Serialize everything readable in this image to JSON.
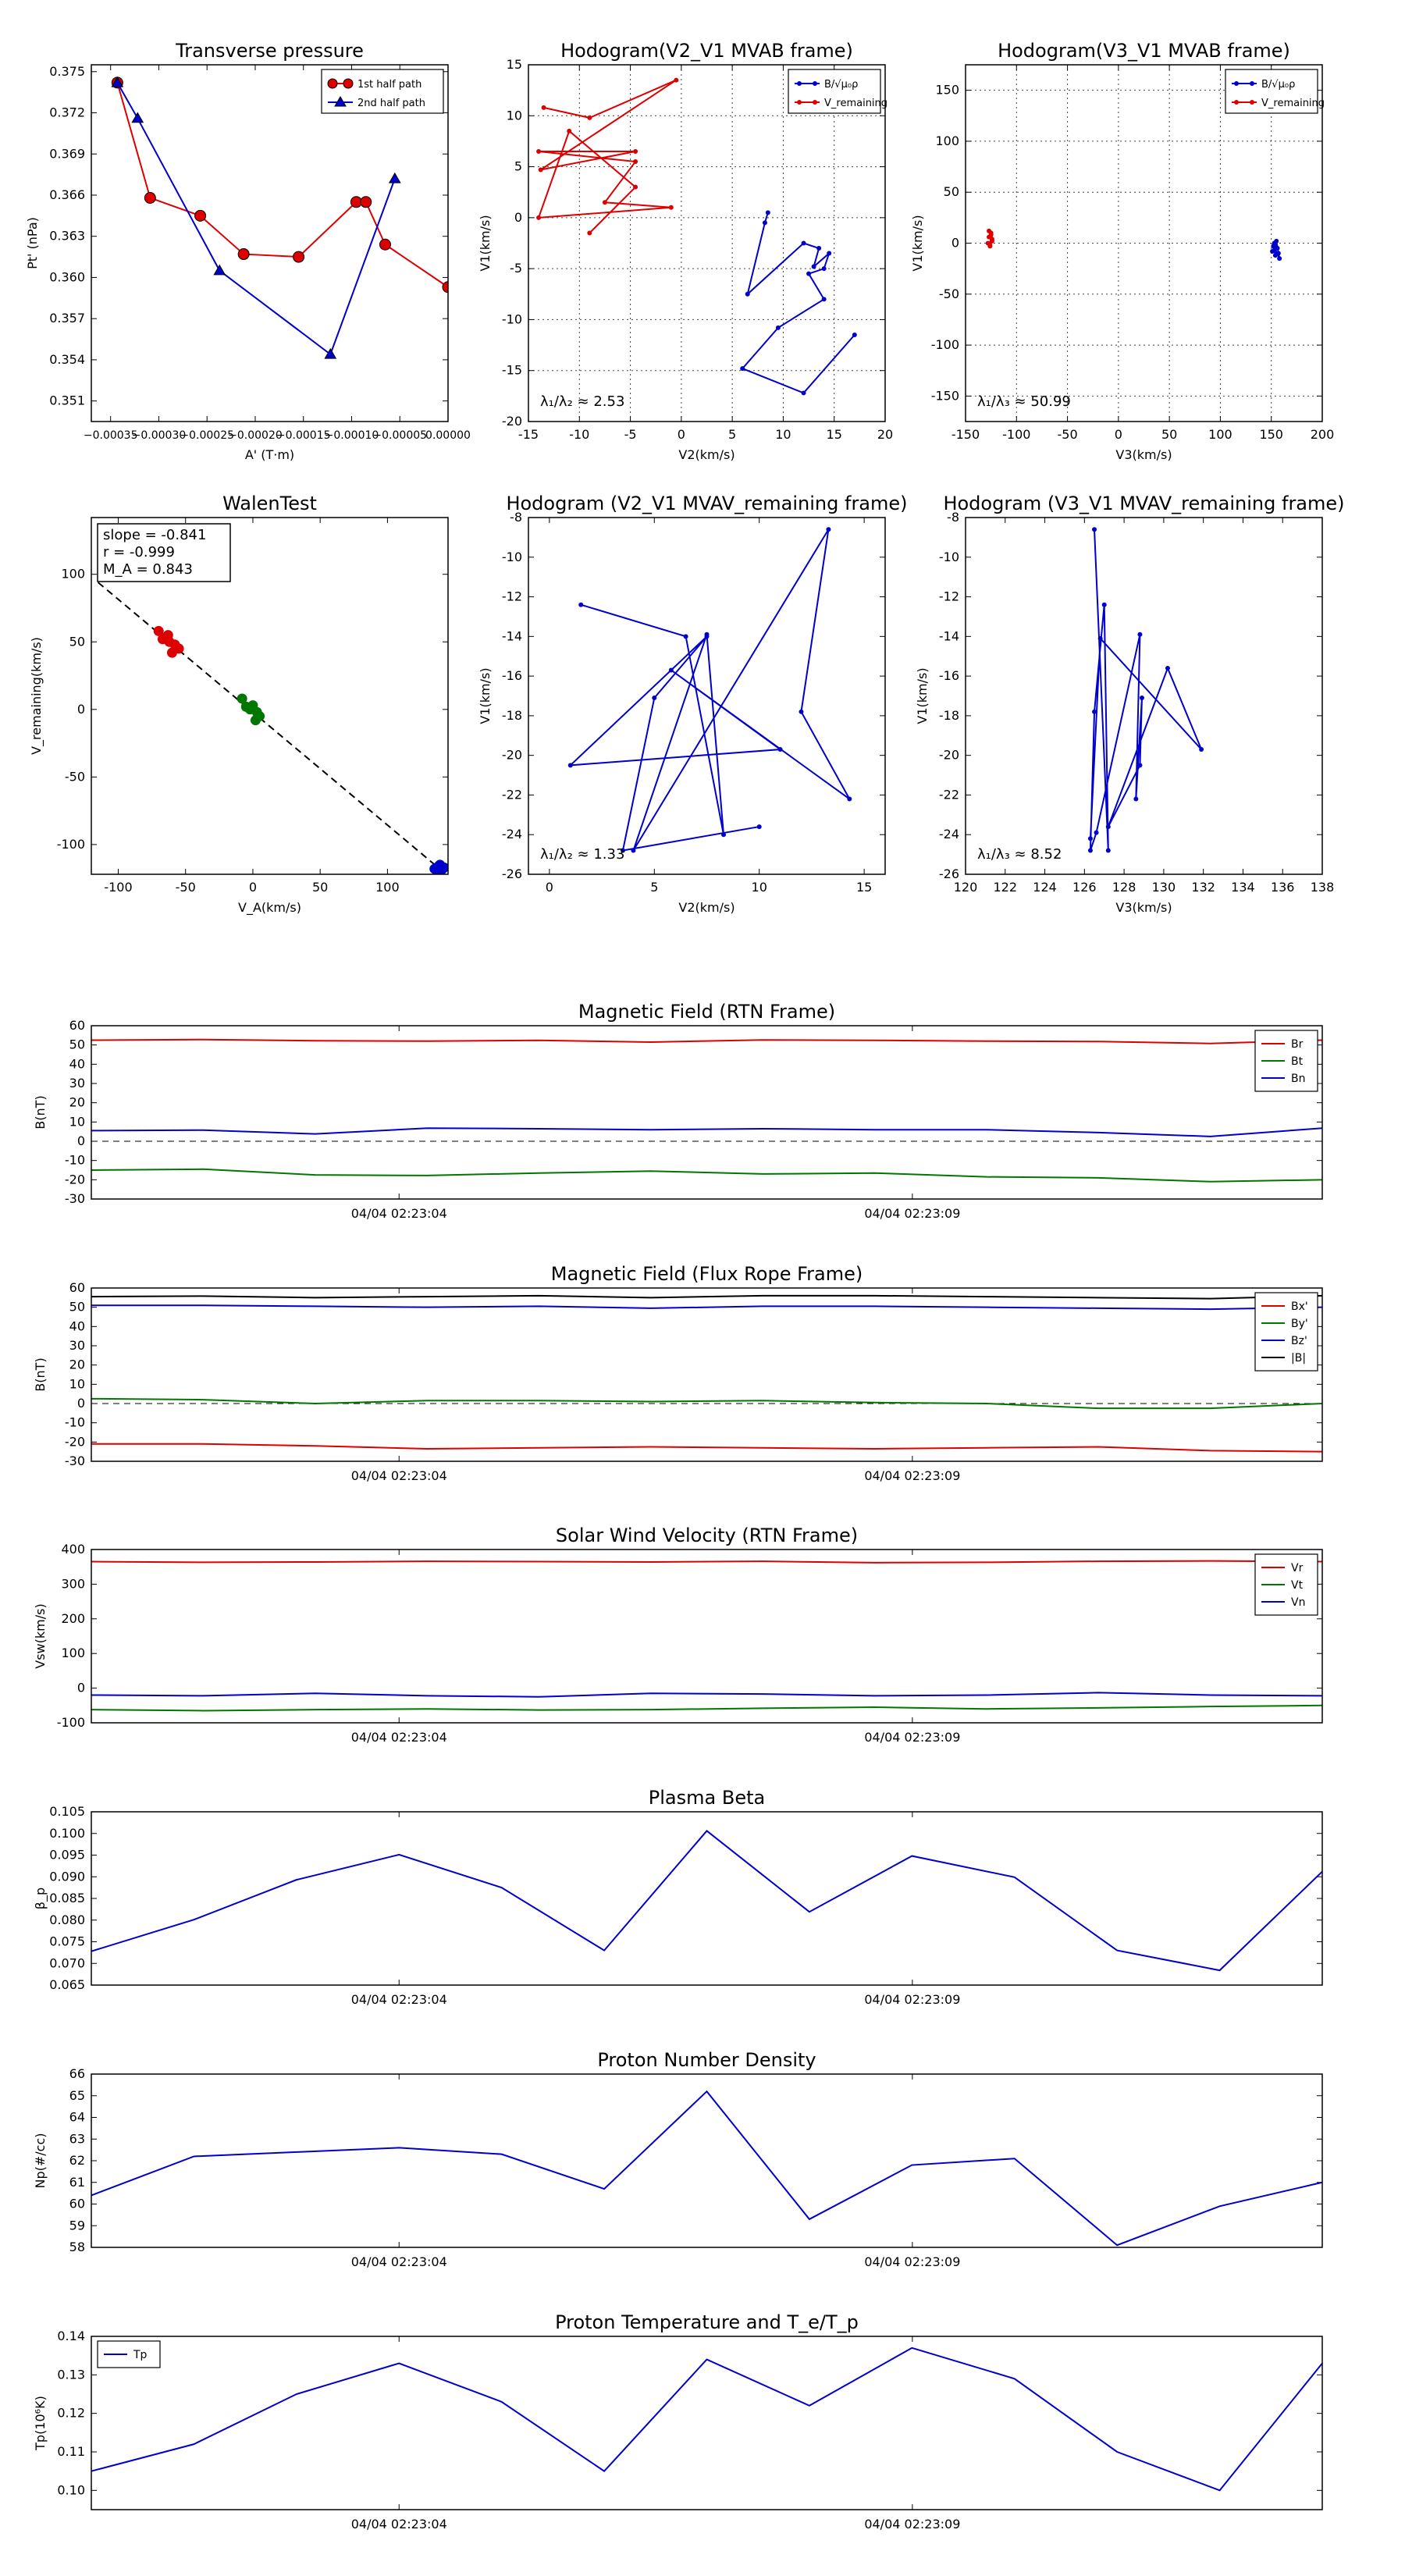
{
  "chart_data": [
    {
      "id": "pt",
      "type": "scatter",
      "title": "Transverse pressure",
      "xlabel": "A' (T·m)",
      "ylabel": "Pt' (nPa)",
      "xlim": [
        -0.00037,
        0.0
      ],
      "ylim": [
        0.3495,
        0.3755
      ],
      "xticks": [
        -0.00035,
        -0.0003,
        -0.00025,
        -0.0002,
        -0.00015,
        -0.0001,
        -5e-05,
        0.0
      ],
      "xticklabels": [
        "−0.00035",
        "−0.00030",
        "−0.00025",
        "−0.00020",
        "−0.00015",
        "−0.00010",
        "−0.00005",
        "0.00000"
      ],
      "yticks": [
        0.351,
        0.354,
        0.357,
        0.36,
        0.363,
        0.366,
        0.369,
        0.372,
        0.375
      ],
      "yticklabels": [
        "0.351",
        "0.354",
        "0.357",
        "0.360",
        "0.363",
        "0.366",
        "0.369",
        "0.372",
        "0.375"
      ],
      "legend_loc": "top-right",
      "series": [
        {
          "name": "1st half path",
          "color": "#dd0000",
          "marker": "circle",
          "x": [
            -0.000343,
            -0.000309,
            -0.000257,
            -0.000212,
            -0.000155,
            -9.52e-05,
            -8.52e-05,
            -6.52e-05,
            0.0
          ],
          "y": [
            0.3742,
            0.3658,
            0.3645,
            0.3617,
            0.3615,
            0.3655,
            0.3655,
            0.3624,
            0.3593
          ]
        },
        {
          "name": "2nd half path",
          "color": "#0000cc",
          "marker": "triangle",
          "x": [
            -0.000343,
            -0.000322,
            -0.000237,
            -0.000122,
            -5.52e-05
          ],
          "y": [
            0.3742,
            0.3716,
            0.3605,
            0.3544,
            0.3672
          ]
        }
      ]
    },
    {
      "id": "h1",
      "type": "line",
      "title": "Hodogram(V2_V1 MVAB frame)",
      "xlabel": "V2(km/s)",
      "ylabel": "V1(km/s)",
      "xlim": [
        -15,
        20
      ],
      "ylim": [
        -20,
        15
      ],
      "xticks": [
        -15,
        -10,
        -5,
        0,
        5,
        10,
        15,
        20
      ],
      "yticks": [
        -20,
        -15,
        -10,
        -5,
        0,
        5,
        10,
        15
      ],
      "annotation": "λ₁/λ₂ ≈ 2.53",
      "legend_loc": "top-right",
      "series": [
        {
          "name": "B/√μ₀ρ",
          "color": "#0000cc",
          "x": [
            8.5,
            8.2,
            6.5,
            12,
            13.5,
            13,
            14.5,
            14,
            12.5,
            14,
            9.5,
            6,
            12,
            17
          ],
          "y": [
            0.5,
            -0.5,
            -7.5,
            -2.5,
            -3,
            -4.8,
            -3.5,
            -5,
            -5.5,
            -8,
            -10.8,
            -14.8,
            -17.2,
            -11.5
          ]
        },
        {
          "name": "V_remaining",
          "color": "#dd0000",
          "x": [
            -13.5,
            -9,
            -0.5,
            -13.8,
            -4.5,
            -14,
            -4.5,
            -7.5,
            -1,
            -14,
            -11,
            -4.5,
            -9
          ],
          "y": [
            10.8,
            9.8,
            13.5,
            4.7,
            6.5,
            6.5,
            5.5,
            1.5,
            1,
            0,
            8.5,
            3,
            -1.5
          ]
        }
      ]
    },
    {
      "id": "h2",
      "type": "line",
      "title": "Hodogram(V3_V1 MVAB frame)",
      "xlabel": "V3(km/s)",
      "ylabel": "V1(km/s)",
      "xlim": [
        -150,
        200
      ],
      "ylim": [
        -175,
        175
      ],
      "xticks": [
        -150,
        -100,
        -50,
        0,
        50,
        100,
        150,
        200
      ],
      "yticks": [
        -150,
        -100,
        -50,
        0,
        50,
        100,
        150
      ],
      "annotation": "λ₁/λ₃ ≈ 50.99",
      "legend_loc": "top-right",
      "series": [
        {
          "name": "B/√μ₀ρ",
          "color": "#0000cc",
          "x": [
            153,
            156,
            151,
            157,
            154,
            152,
            155,
            158,
            153
          ],
          "y": [
            0,
            -5,
            -8,
            -10,
            -12,
            -3,
            2,
            -15,
            -4
          ]
        },
        {
          "name": "V_remaining",
          "color": "#dd0000",
          "x": [
            -127,
            -125,
            -124,
            -128,
            -126,
            -125,
            -127,
            -124,
            -126
          ],
          "y": [
            6,
            10,
            2,
            0,
            -2,
            8,
            12,
            4,
            -3
          ]
        }
      ]
    },
    {
      "id": "walen",
      "type": "scatter",
      "title": "WalenTest",
      "xlabel": "V_A(km/s)",
      "ylabel": "V_remaining(km/s)",
      "xlim": [
        -120,
        145
      ],
      "ylim": [
        -122,
        142
      ],
      "xticks": [
        -100,
        -50,
        0,
        50,
        100
      ],
      "yticks": [
        -100,
        -50,
        0,
        50,
        100
      ],
      "annotations": [
        "slope = -0.841",
        "r = -0.999",
        "M_A = 0.843"
      ],
      "fit_line": {
        "x": [
          -115,
          140
        ],
        "y": [
          94,
          -119
        ]
      },
      "series": [
        {
          "name": "red",
          "color": "#dd0000",
          "x": [
            -65,
            -70,
            -62,
            -58,
            -55,
            -60,
            -63,
            -67
          ],
          "y": [
            53,
            58,
            50,
            48,
            45,
            42,
            55,
            52
          ]
        },
        {
          "name": "green",
          "color": "#007700",
          "x": [
            -8,
            -5,
            -2,
            0,
            3,
            5,
            2,
            -3
          ],
          "y": [
            8,
            2,
            0,
            3,
            -2,
            -5,
            -8,
            1
          ]
        },
        {
          "name": "blue",
          "color": "#0000cc",
          "x": [
            135,
            138,
            140,
            142,
            139,
            141,
            137
          ],
          "y": [
            -118,
            -116,
            -119,
            -117,
            -115,
            -118,
            -120
          ]
        }
      ]
    },
    {
      "id": "h3",
      "type": "line",
      "title": "Hodogram (V2_V1 MVAV_remaining frame)",
      "xlabel": "V2(km/s)",
      "ylabel": "V1(km/s)",
      "xlim": [
        -1,
        16
      ],
      "ylim": [
        -26,
        -8
      ],
      "xticks": [
        0,
        5,
        10,
        15
      ],
      "yticks": [
        -26,
        -24,
        -22,
        -20,
        -18,
        -16,
        -14,
        -12,
        -10,
        -8
      ],
      "annotation": "λ₁/λ₂ ≈ 1.33",
      "series": [
        {
          "name": "path",
          "color": "#0000cc",
          "x": [
            1.5,
            6.5,
            8.3,
            7.5,
            4,
            13.3,
            12,
            14.3,
            5.8,
            11,
            1,
            7.5,
            5,
            3.5,
            10
          ],
          "y": [
            -12.4,
            -14,
            -24,
            -13.9,
            -24.8,
            -8.6,
            -17.8,
            -22.2,
            -15.7,
            -19.7,
            -20.5,
            -14,
            -17.1,
            -24.8,
            -23.6
          ]
        }
      ]
    },
    {
      "id": "h4",
      "type": "line",
      "title": "Hodogram (V3_V1 MVAV_remaining frame)",
      "xlabel": "V3(km/s)",
      "ylabel": "V1(km/s)",
      "xlim": [
        120,
        138
      ],
      "ylim": [
        -26,
        -8
      ],
      "xticks": [
        120,
        122,
        124,
        126,
        128,
        130,
        132,
        134,
        136,
        138
      ],
      "yticks": [
        -26,
        -24,
        -22,
        -20,
        -18,
        -16,
        -14,
        -12,
        -10,
        -8
      ],
      "annotation": "λ₁/λ₃ ≈ 8.52",
      "series": [
        {
          "name": "path",
          "color": "#0000cc",
          "x": [
            126.5,
            127.2,
            127,
            126.5,
            126.3,
            126.6,
            128.8,
            128.6,
            128.9,
            128.8,
            127.2,
            130.2,
            131.9,
            126.8,
            126.3
          ],
          "y": [
            -8.6,
            -24.8,
            -12.4,
            -17.8,
            -24.8,
            -23.9,
            -13.9,
            -22.2,
            -17.1,
            -20.5,
            -23.6,
            -15.6,
            -19.7,
            -14.1,
            -24.2
          ]
        }
      ]
    },
    {
      "id": "bfield",
      "type": "line",
      "title": "Magnetic Field (RTN Frame)",
      "ylabel": "B(nT)",
      "ylim": [
        -30,
        60
      ],
      "yticks": [
        -30,
        -20,
        -10,
        0,
        10,
        20,
        30,
        40,
        50,
        60
      ],
      "xticklabels": [
        "04/04 02:23:04",
        "04/04 02:23:09"
      ],
      "zero_line": true,
      "legend_loc": "top-right",
      "series": [
        {
          "name": "Br",
          "color": "#dd0000",
          "values": [
            52.5,
            52.8,
            52.2,
            52.0,
            52.4,
            51.5,
            52.6,
            52.4,
            52.0,
            51.8,
            50.8,
            52.5
          ]
        },
        {
          "name": "Bt",
          "color": "#007700",
          "values": [
            -15.0,
            -14.5,
            -17.5,
            -17.8,
            -16.5,
            -15.5,
            -17.0,
            -16.5,
            -18.5,
            -19.0,
            -21.0,
            -20.0
          ]
        },
        {
          "name": "Bn",
          "color": "#0000cc",
          "values": [
            5.5,
            5.8,
            3.8,
            6.8,
            6.5,
            6.0,
            6.5,
            6.0,
            6.0,
            4.5,
            2.5,
            6.8
          ]
        }
      ]
    },
    {
      "id": "bfr",
      "type": "line",
      "title": "Magnetic Field (Flux Rope Frame)",
      "ylabel": "B(nT)",
      "ylim": [
        -30,
        60
      ],
      "yticks": [
        -30,
        -20,
        -10,
        0,
        10,
        20,
        30,
        40,
        50,
        60
      ],
      "xticklabels": [
        "04/04 02:23:04",
        "04/04 02:23:09"
      ],
      "zero_line": true,
      "legend_loc": "top-right",
      "series": [
        {
          "name": "Bx'",
          "color": "#dd0000",
          "values": [
            -21.0,
            -21.0,
            -22.0,
            -23.5,
            -23.0,
            -22.5,
            -23.0,
            -23.5,
            -23.0,
            -22.5,
            -24.5,
            -25.0
          ]
        },
        {
          "name": "By'",
          "color": "#007700",
          "values": [
            2.5,
            2.0,
            0.0,
            1.5,
            1.5,
            1.0,
            1.5,
            0.5,
            0.0,
            -2.5,
            -2.5,
            0.0
          ]
        },
        {
          "name": "Bz'",
          "color": "#0000cc",
          "values": [
            51.0,
            51.0,
            50.5,
            50.0,
            50.5,
            49.5,
            50.5,
            50.5,
            50.0,
            49.5,
            49.0,
            50.0
          ]
        },
        {
          "name": "|B|",
          "color": "#000000",
          "values": [
            55.5,
            55.8,
            55.0,
            55.5,
            56.0,
            55.0,
            56.0,
            56.0,
            55.5,
            55.0,
            54.5,
            56.0
          ]
        }
      ]
    },
    {
      "id": "vsw",
      "type": "line",
      "title": "Solar Wind Velocity (RTN Frame)",
      "ylabel": "Vsw(km/s)",
      "ylim": [
        -100,
        400
      ],
      "yticks": [
        -100,
        0,
        100,
        200,
        300,
        400
      ],
      "xticklabels": [
        "04/04 02:23:04",
        "04/04 02:23:09"
      ],
      "legend_loc": "top-right",
      "series": [
        {
          "name": "Vr",
          "color": "#dd0000",
          "values": [
            365,
            363,
            364,
            366,
            365,
            364,
            366,
            362,
            363,
            366,
            367,
            365
          ]
        },
        {
          "name": "Vt",
          "color": "#007700",
          "values": [
            -62,
            -65,
            -62,
            -60,
            -63,
            -62,
            -58,
            -55,
            -60,
            -57,
            -53,
            -50
          ]
        },
        {
          "name": "Vn",
          "color": "#0000cc",
          "values": [
            -20,
            -22,
            -15,
            -22,
            -25,
            -15,
            -17,
            -22,
            -20,
            -13,
            -20,
            -22
          ]
        }
      ]
    },
    {
      "id": "beta",
      "type": "line",
      "title": "Plasma Beta",
      "ylabel": "β_p",
      "ylim": [
        0.065,
        0.105
      ],
      "yticks": [
        0.065,
        0.07,
        0.075,
        0.08,
        0.085,
        0.09,
        0.095,
        0.1,
        0.105
      ],
      "yticklabels": [
        "0.065",
        "0.070",
        "0.075",
        "0.080",
        "0.085",
        "0.090",
        "0.095",
        "0.100",
        "0.105"
      ],
      "xticklabels": [
        "04/04 02:23:04",
        "04/04 02:23:09"
      ],
      "series": [
        {
          "name": "beta",
          "color": "#0000cc",
          "values": [
            0.0728,
            0.0801,
            0.0893,
            0.0951,
            0.0875,
            0.073,
            0.1006,
            0.0819,
            0.0948,
            0.0899,
            0.073,
            0.0684,
            0.0912
          ]
        }
      ]
    },
    {
      "id": "np",
      "type": "line",
      "title": "Proton Number Density",
      "ylabel": "Np(#/cc)",
      "ylim": [
        58,
        66
      ],
      "yticks": [
        58,
        59,
        60,
        61,
        62,
        63,
        64,
        65,
        66
      ],
      "xticklabels": [
        "04/04 02:23:04",
        "04/04 02:23:09"
      ],
      "series": [
        {
          "name": "Np",
          "color": "#0000cc",
          "values": [
            60.4,
            62.2,
            62.4,
            62.6,
            62.3,
            60.7,
            65.2,
            59.3,
            61.8,
            62.1,
            58.1,
            59.9,
            61.0
          ]
        }
      ]
    },
    {
      "id": "tp",
      "type": "line",
      "title": "Proton Temperature and T_e/T_p",
      "ylabel": "Tp(10⁶K)",
      "ylim": [
        0.095,
        0.14
      ],
      "yticks": [
        0.1,
        0.11,
        0.12,
        0.13,
        0.14
      ],
      "yticklabels": [
        "0.10",
        "0.11",
        "0.12",
        "0.13",
        "0.14"
      ],
      "xticklabels": [
        "04/04 02:23:04",
        "04/04 02:23:09"
      ],
      "legend_loc": "top-left",
      "series": [
        {
          "name": "Tp",
          "color": "#0000cc",
          "values": [
            0.105,
            0.112,
            0.125,
            0.133,
            0.123,
            0.105,
            0.134,
            0.122,
            0.137,
            0.129,
            0.11,
            0.1,
            0.133
          ]
        }
      ]
    }
  ]
}
